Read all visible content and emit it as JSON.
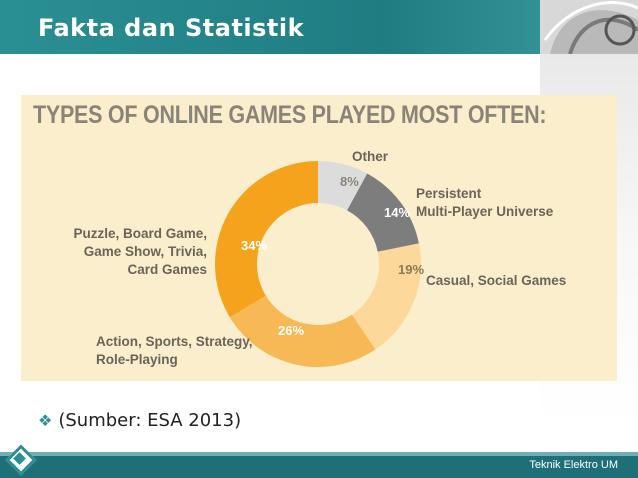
{
  "slide": {
    "title": "Fakta dan Statistik",
    "footer": "Teknik Elektro UM",
    "bullet_text": "(Sumber: ESA 2013)",
    "bullet_icon": "diamond-bullet-icon"
  },
  "colors": {
    "title_bar": "#1f7d82",
    "chart_background": "#fbeecd",
    "label_text": "#6b6459"
  },
  "chart_data": {
    "type": "pie",
    "variant": "donut",
    "title": "TYPES OF ONLINE GAMES PLAYED MOST OFTEN:",
    "slices": [
      {
        "name": "Other",
        "value": 8,
        "label": "8%",
        "color": "#dcdcdc"
      },
      {
        "name": "Persistent Multi-Player Universe",
        "name_lines": [
          "Persistent",
          "Multi-Player Universe"
        ],
        "value": 14,
        "label": "14%",
        "color": "#7d7d7d"
      },
      {
        "name": "Casual, Social Games",
        "name_lines": [
          "Casual, Social Games"
        ],
        "value": 19,
        "label": "19%",
        "color": "#fcd89a"
      },
      {
        "name": "Action, Sports, Strategy, Role-Playing",
        "name_lines": [
          "Action, Sports, Strategy,",
          "Role-Playing"
        ],
        "value": 26,
        "label": "26%",
        "color": "#f7b955"
      },
      {
        "name": "Puzzle, Board Game, Game Show, Trivia, Card Games",
        "name_lines": [
          "Puzzle, Board Game,",
          "Game Show, Trivia,",
          "Card Games"
        ],
        "value": 34,
        "label": "34%",
        "color": "#f5a31c"
      }
    ],
    "legend": "none"
  }
}
